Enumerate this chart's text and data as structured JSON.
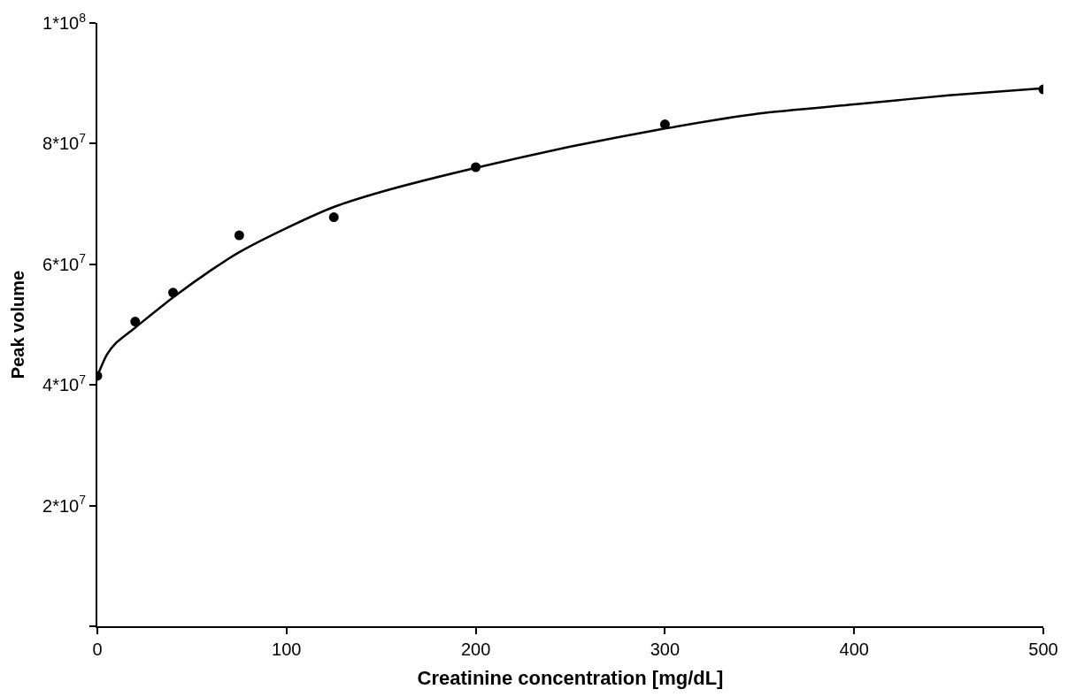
{
  "chart_data": {
    "type": "scatter",
    "xlabel": "Creatinine concentration [mg/dL]",
    "ylabel": "Peak volume",
    "xlim": [
      0,
      500
    ],
    "xticks": [
      0,
      100,
      200,
      300,
      400,
      500
    ],
    "ylim": [
      0,
      100000000
    ],
    "yticks": [
      {
        "value": 0,
        "label": null
      },
      {
        "value": 20000000,
        "label": "2*10$^{7}$"
      },
      {
        "value": 40000000,
        "label": "4*10$^{7}$"
      },
      {
        "value": 60000000,
        "label": "6*10$^{7}$"
      },
      {
        "value": 80000000,
        "label": "8*10$^{7}$"
      },
      {
        "value": 100000000,
        "label": "1*10$^{8}$"
      }
    ],
    "series": [
      {
        "marker": "circle",
        "color": "#000000",
        "x": [
          0,
          20,
          40,
          75,
          125,
          200,
          300,
          500
        ],
        "values": [
          41500000,
          50500000,
          55300000,
          64800000,
          67800000,
          76100000,
          83200000,
          89000000
        ]
      },
      {
        "type": "line",
        "marker": "none",
        "line_style": "solid",
        "color": "#000000",
        "x": [
          0,
          5,
          10,
          20,
          40,
          60,
          75,
          100,
          125,
          150,
          200,
          250,
          300,
          350,
          400,
          450,
          500
        ],
        "values": [
          41500000,
          45000000,
          47000000,
          49500000,
          54500000,
          59000000,
          62000000,
          66000000,
          69500000,
          72000000,
          76000000,
          79500000,
          82500000,
          85000000,
          86500000,
          88000000,
          89200000
        ]
      }
    ]
  }
}
